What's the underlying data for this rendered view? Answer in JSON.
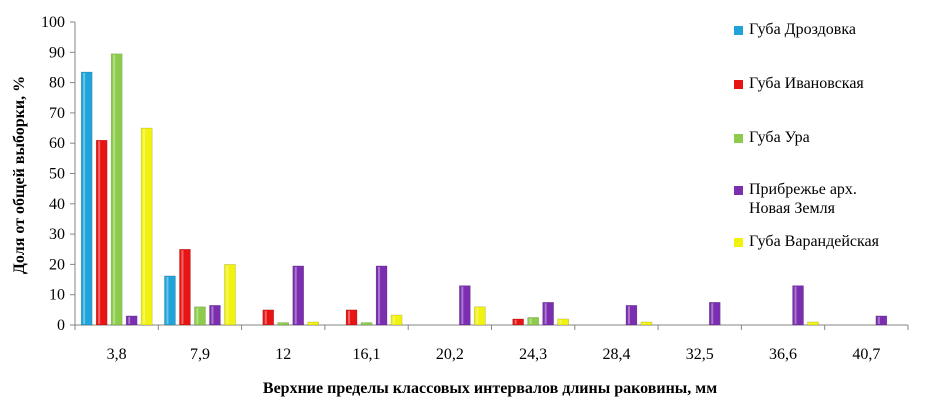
{
  "chart_data": {
    "type": "bar",
    "xlabel": "Верхние пределы классовых интервалов длины раковины, мм",
    "ylabel": "Доля от общей выборки, %",
    "ylim": [
      0,
      100
    ],
    "yticks": [
      "0",
      "10",
      "20",
      "30",
      "40",
      "50",
      "60",
      "70",
      "80",
      "90",
      "100"
    ],
    "categories": [
      "3,8",
      "7,9",
      "12",
      "16,1",
      "20,2",
      "24,3",
      "28,4",
      "32,5",
      "36,6",
      "40,7"
    ],
    "grid": false,
    "legend_position": "right",
    "series": [
      {
        "name": "Губа Дроздовка",
        "color": "#1fa3d9",
        "values": [
          83.5,
          16.2,
          0,
          0,
          0,
          0,
          0,
          0,
          0,
          0
        ]
      },
      {
        "name": "Губа Ивановская",
        "color": "#e81414",
        "values": [
          61,
          25,
          5,
          5,
          0,
          2,
          0,
          0,
          0,
          0
        ]
      },
      {
        "name": "Губа Ура",
        "color": "#8ccc4a",
        "values": [
          89.5,
          6,
          0.8,
          0.8,
          0,
          2.5,
          0,
          0,
          0,
          0
        ]
      },
      {
        "name": "Прибрежье арх.\nНовая Земля",
        "color": "#7b2fb0",
        "values": [
          3,
          6.5,
          19.5,
          19.5,
          13,
          7.5,
          6.5,
          7.5,
          13,
          3
        ]
      },
      {
        "name": "Губа Варандейская",
        "color": "#f2f20f",
        "values": [
          65,
          20,
          1,
          3.3,
          6,
          2,
          1,
          0,
          1,
          0
        ]
      }
    ]
  }
}
